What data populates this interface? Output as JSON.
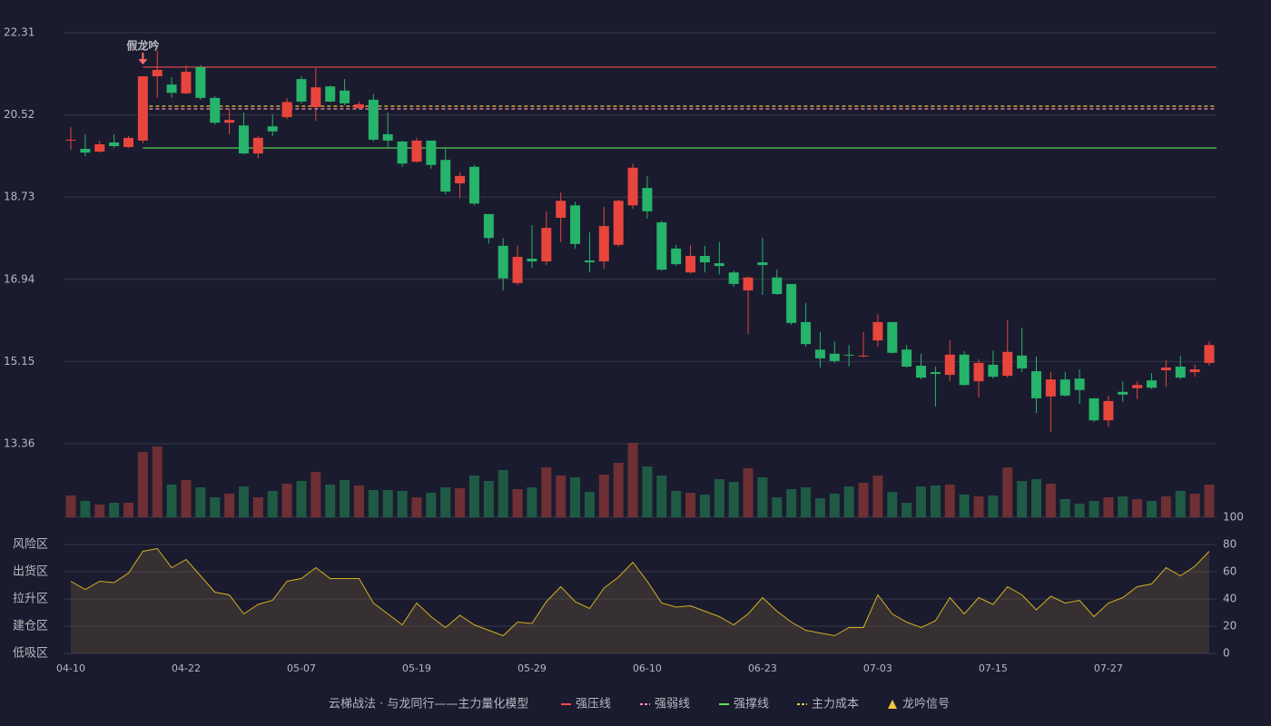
{
  "chart_data": {
    "type": "candlestick",
    "categories": [
      "04-10",
      null,
      null,
      null,
      null,
      null,
      null,
      null,
      "04-22",
      null,
      null,
      null,
      null,
      null,
      null,
      null,
      "05-07",
      null,
      null,
      null,
      null,
      null,
      null,
      null,
      "05-19",
      null,
      null,
      null,
      null,
      null,
      null,
      null,
      "05-29",
      null,
      null,
      null,
      null,
      null,
      null,
      null,
      "06-10",
      null,
      null,
      null,
      null,
      null,
      null,
      null,
      "06-23",
      null,
      null,
      null,
      null,
      null,
      null,
      null,
      "07-03",
      null,
      null,
      null,
      null,
      null,
      null,
      null,
      "07-15",
      null,
      null,
      null,
      null,
      null,
      null,
      null,
      "07-27",
      null,
      null,
      null,
      null,
      null,
      null,
      null
    ],
    "ohlc": [
      [
        19.96,
        20.25,
        19.76,
        19.98
      ],
      [
        19.78,
        20.1,
        19.62,
        19.7
      ],
      [
        19.72,
        19.96,
        19.7,
        19.88
      ],
      [
        19.92,
        20.1,
        19.8,
        19.84
      ],
      [
        19.82,
        20.06,
        19.8,
        20.02
      ],
      [
        19.96,
        21.36,
        19.9,
        21.36
      ],
      [
        21.36,
        21.92,
        20.89,
        21.5
      ],
      [
        21.18,
        21.34,
        20.89,
        21.0
      ],
      [
        20.99,
        21.6,
        20.97,
        21.46
      ],
      [
        21.56,
        21.6,
        20.85,
        20.89
      ],
      [
        20.89,
        20.93,
        20.31,
        20.35
      ],
      [
        20.35,
        20.65,
        20.1,
        20.41
      ],
      [
        20.29,
        20.57,
        19.66,
        19.68
      ],
      [
        19.68,
        20.06,
        19.58,
        20.02
      ],
      [
        20.27,
        20.53,
        20.06,
        20.16
      ],
      [
        20.47,
        20.89,
        20.43,
        20.8
      ],
      [
        21.3,
        21.36,
        20.77,
        20.81
      ],
      [
        20.69,
        21.54,
        20.39,
        21.12
      ],
      [
        21.14,
        21.16,
        20.79,
        20.81
      ],
      [
        21.05,
        21.3,
        20.73,
        20.77
      ],
      [
        20.67,
        20.81,
        20.65,
        20.75
      ],
      [
        20.85,
        20.97,
        19.94,
        19.98
      ],
      [
        20.1,
        20.57,
        19.82,
        19.96
      ],
      [
        19.94,
        19.96,
        19.39,
        19.46
      ],
      [
        19.5,
        20.02,
        19.48,
        19.96
      ],
      [
        19.96,
        19.96,
        19.35,
        19.43
      ],
      [
        19.54,
        19.8,
        18.79,
        18.85
      ],
      [
        19.03,
        19.27,
        18.71,
        19.19
      ],
      [
        19.39,
        19.43,
        18.55,
        18.59
      ],
      [
        18.36,
        18.36,
        17.72,
        17.84
      ],
      [
        17.67,
        17.84,
        16.7,
        16.96
      ],
      [
        16.86,
        17.67,
        16.82,
        17.43
      ],
      [
        17.39,
        18.12,
        17.19,
        17.33
      ],
      [
        17.33,
        18.42,
        17.25,
        18.06
      ],
      [
        18.28,
        18.83,
        17.75,
        18.65
      ],
      [
        18.55,
        18.63,
        17.61,
        17.71
      ],
      [
        17.35,
        17.96,
        17.09,
        17.31
      ],
      [
        17.33,
        18.52,
        17.17,
        18.1
      ],
      [
        17.69,
        18.67,
        17.65,
        18.65
      ],
      [
        18.55,
        19.46,
        18.47,
        19.37
      ],
      [
        18.93,
        19.19,
        18.26,
        18.42
      ],
      [
        18.18,
        18.22,
        17.13,
        17.15
      ],
      [
        17.61,
        17.69,
        17.23,
        17.27
      ],
      [
        17.09,
        17.69,
        17.07,
        17.45
      ],
      [
        17.45,
        17.67,
        17.09,
        17.31
      ],
      [
        17.29,
        17.75,
        17.05,
        17.23
      ],
      [
        17.09,
        17.13,
        16.78,
        16.84
      ],
      [
        16.7,
        17.0,
        15.75,
        16.98
      ],
      [
        17.31,
        17.84,
        16.6,
        17.25
      ],
      [
        16.98,
        17.15,
        16.6,
        16.62
      ],
      [
        16.84,
        16.84,
        15.95,
        15.99
      ],
      [
        16.01,
        16.42,
        15.47,
        15.53
      ],
      [
        15.41,
        15.79,
        15.02,
        15.22
      ],
      [
        15.32,
        15.59,
        15.12,
        15.16
      ],
      [
        15.3,
        15.51,
        15.04,
        15.28
      ],
      [
        15.26,
        15.79,
        15.24,
        15.28
      ],
      [
        15.61,
        16.18,
        15.47,
        16.01
      ],
      [
        16.01,
        16.01,
        15.32,
        15.34
      ],
      [
        15.41,
        15.51,
        15.02,
        15.04
      ],
      [
        15.06,
        15.32,
        14.76,
        14.8
      ],
      [
        14.92,
        15.04,
        14.17,
        14.88
      ],
      [
        14.86,
        15.61,
        14.72,
        15.3
      ],
      [
        15.3,
        15.38,
        14.62,
        14.64
      ],
      [
        14.72,
        15.2,
        14.37,
        15.12
      ],
      [
        15.08,
        15.39,
        14.78,
        14.82
      ],
      [
        14.84,
        16.05,
        14.8,
        15.36
      ],
      [
        15.28,
        15.89,
        14.92,
        15.0
      ],
      [
        14.94,
        15.26,
        14.03,
        14.35
      ],
      [
        14.39,
        14.92,
        13.62,
        14.76
      ],
      [
        14.76,
        14.92,
        14.39,
        14.41
      ],
      [
        14.78,
        14.98,
        14.23,
        14.53
      ],
      [
        14.35,
        14.35,
        13.83,
        13.87
      ],
      [
        13.87,
        14.41,
        13.73,
        14.29
      ],
      [
        14.49,
        14.72,
        14.27,
        14.43
      ],
      [
        14.57,
        14.72,
        14.33,
        14.64
      ],
      [
        14.74,
        14.9,
        14.55,
        14.58
      ],
      [
        14.96,
        15.18,
        14.6,
        15.02
      ],
      [
        15.04,
        15.28,
        14.76,
        14.8
      ],
      [
        14.92,
        15.08,
        14.82,
        14.98
      ],
      [
        15.12,
        15.59,
        15.06,
        15.51
      ]
    ],
    "ylim": [
      13.36,
      22.31
    ],
    "yticks": [
      13.36,
      15.15,
      16.94,
      18.73,
      20.52,
      22.31
    ],
    "grid": true,
    "up_color": "#e8453c",
    "down_color": "#26b36a",
    "volume": [
      24,
      18,
      14,
      16,
      16,
      72,
      78,
      36,
      41,
      33,
      22,
      26,
      34,
      22,
      29,
      37,
      40,
      50,
      36,
      41,
      35,
      30,
      30,
      29,
      22,
      27,
      33,
      32,
      46,
      40,
      52,
      31,
      33,
      55,
      46,
      44,
      28,
      47,
      60,
      82,
      56,
      46,
      29,
      27,
      25,
      42,
      39,
      54,
      44,
      22,
      31,
      33,
      21,
      26,
      34,
      38,
      46,
      28,
      16,
      34,
      35,
      36,
      25,
      23,
      24,
      55,
      40,
      42,
      37,
      20,
      15,
      18,
      22,
      23,
      20,
      18,
      23,
      29,
      26,
      36
    ],
    "volume_up_color": "#6e2f35",
    "volume_down_color": "#1f5a45",
    "levels": [
      {
        "name": "强压线",
        "value": 21.56,
        "color": "#f04848",
        "style": "solid"
      },
      {
        "name": "强弱线",
        "value": 20.65,
        "color": "#ff8fa8",
        "style": "dashed"
      },
      {
        "name": "强撑线",
        "value": 19.8,
        "color": "#5ee05e",
        "style": "solid"
      },
      {
        "name": "主力成本",
        "value": 20.71,
        "color": "#f5c542",
        "style": "dashed"
      }
    ],
    "signal": {
      "text": "假龙吟",
      "index": 5,
      "name": "龙吟信号",
      "color": "#f5c542",
      "text_color": "#ff6b6b"
    },
    "legend_title": "云梯战法 · 与龙同行——主力量化模型",
    "indicator": {
      "values": [
        53,
        47,
        53,
        52,
        59,
        75,
        77,
        63,
        69,
        57,
        45,
        43,
        29,
        36,
        39,
        53,
        55,
        63,
        55,
        55,
        55,
        37,
        29,
        21,
        37,
        27,
        19,
        28,
        21,
        17,
        13,
        23,
        22,
        38,
        49,
        38,
        33,
        48,
        56,
        67,
        53,
        37,
        34,
        35,
        31,
        27,
        21,
        29,
        41,
        31,
        23,
        17,
        15,
        13,
        19,
        19,
        43,
        29,
        23,
        19,
        24,
        41,
        29,
        41,
        36,
        49,
        43,
        32,
        42,
        37,
        39,
        27,
        37,
        41,
        49,
        51,
        63,
        57,
        64,
        75
      ],
      "ylim": [
        0,
        100
      ],
      "yticks": [
        0,
        20,
        40,
        60,
        80,
        100
      ],
      "ytick_colors": [
        "#f04040",
        "#f07a30",
        "#4a90ff",
        "#e040e0",
        "#f0a030",
        "#44ee44"
      ],
      "zones": [
        "低吸区",
        "建仓区",
        "拉升区",
        "出货区",
        "风险区"
      ],
      "color": "#d4b020"
    }
  }
}
